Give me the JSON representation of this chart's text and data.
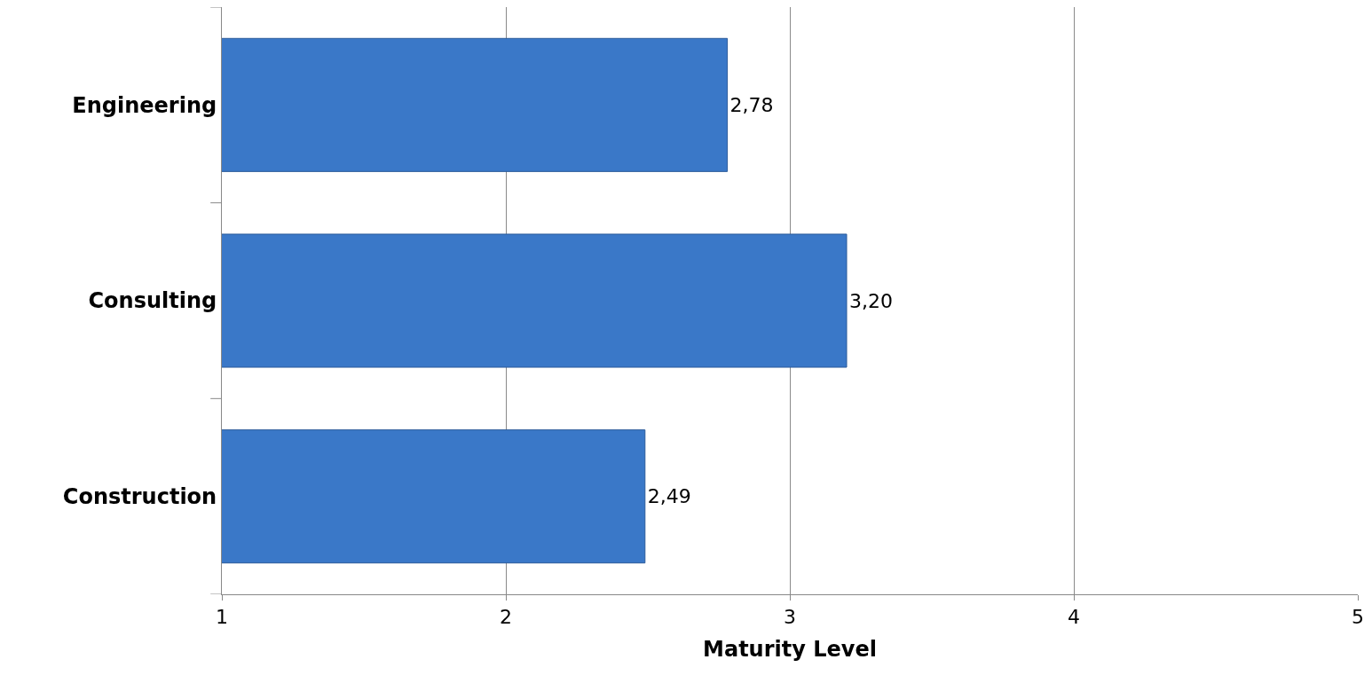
{
  "chart_data": {
    "type": "bar",
    "orientation": "horizontal",
    "xlabel": "Maturity Level",
    "categories": [
      "Engineering",
      "Consulting",
      "Construction"
    ],
    "values": [
      2.78,
      3.2,
      2.49
    ],
    "value_labels": [
      "2,78",
      "3,20",
      "2,49"
    ],
    "color": "#3a78c8",
    "xlim": [
      1,
      5
    ],
    "xticks": [
      1,
      2,
      3,
      4,
      5
    ],
    "grid": "x"
  }
}
